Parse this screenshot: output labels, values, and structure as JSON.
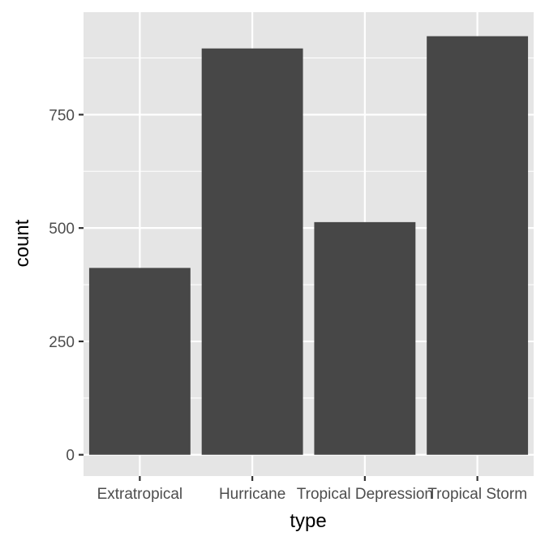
{
  "chart_data": {
    "type": "bar",
    "xlabel": "type",
    "ylabel": "count",
    "categories": [
      "Extratropical",
      "Hurricane",
      "Tropical Depression",
      "Tropical Storm"
    ],
    "values": [
      412,
      896,
      513,
      923
    ],
    "ylim": [
      -47,
      976
    ],
    "yticks": [
      0,
      250,
      500,
      750
    ],
    "ytick_labels": [
      "0",
      "250",
      "500",
      "750"
    ],
    "grid": true,
    "legend": "none",
    "colors": {
      "panel": "#e5e5e5",
      "bar": "#474747",
      "grid_major": "#ffffff",
      "tick_label": "#4d4d4d",
      "tick_mark": "#333333"
    }
  }
}
